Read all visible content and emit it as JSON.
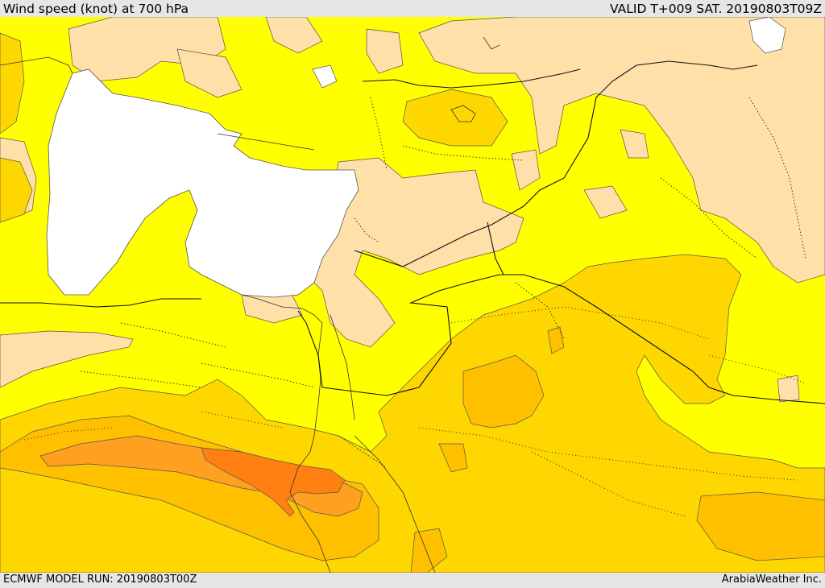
{
  "header": {
    "title": "Wind speed (knot) at 700 hPa",
    "valid": "VALID T+009 SAT. 20190803T09Z"
  },
  "footer": {
    "model_run": "ECMWF MODEL RUN: 20190803T00Z",
    "credit": "ArabiaWeather Inc."
  },
  "colors": {
    "band_light": "#ffe0a8",
    "band_yellow": "#ffff00",
    "band_gold": "#ffd700",
    "band_amber": "#ffc000",
    "band_orange": "#ffa020",
    "band_darkorange": "#ff8010",
    "sea_mask": "#ffffff"
  }
}
